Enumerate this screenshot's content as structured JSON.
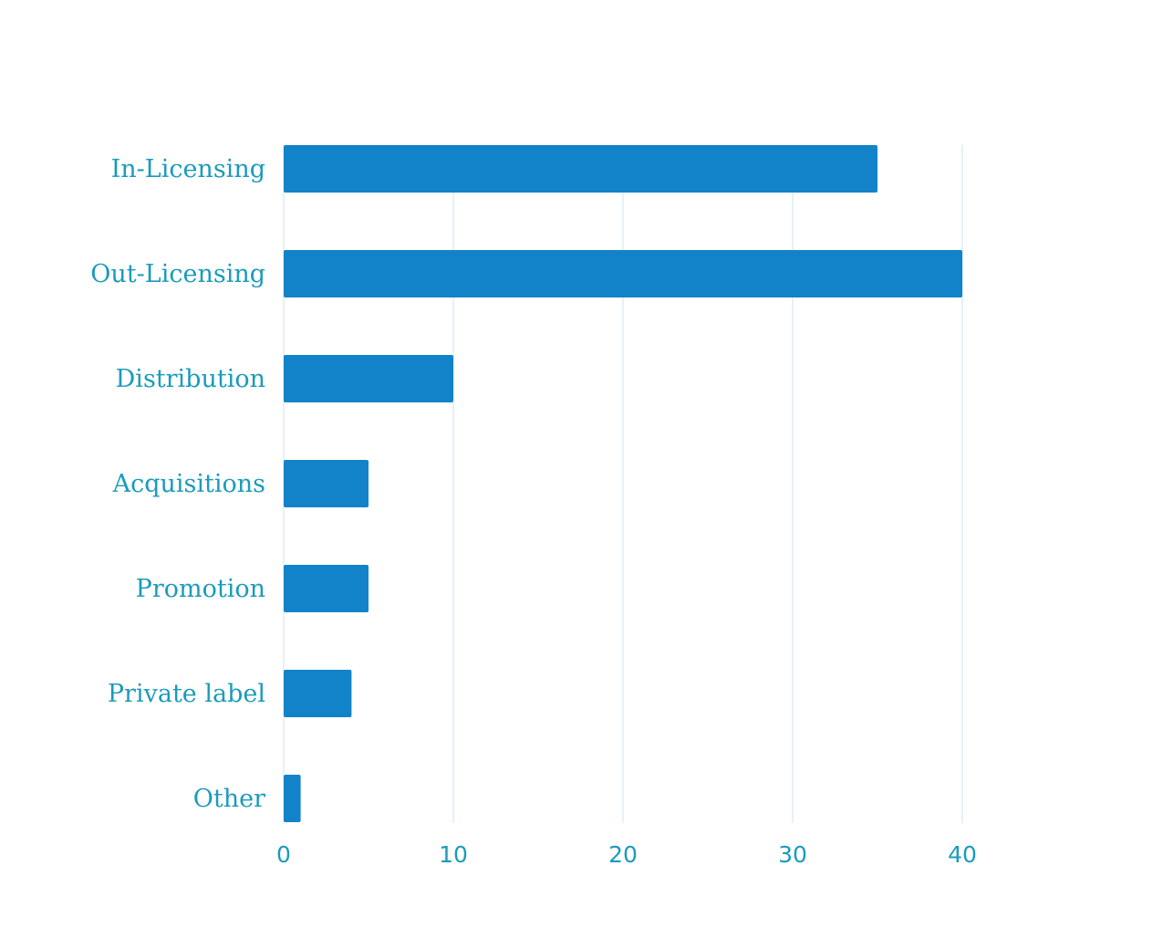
{
  "chart_data": {
    "type": "bar",
    "orientation": "horizontal",
    "categories": [
      "In-Licensing",
      "Out-Licensing",
      "Distribution",
      "Acquisitions",
      "Promotion",
      "Private label",
      "Other"
    ],
    "values": [
      35,
      40,
      10,
      5,
      5,
      4,
      1
    ],
    "title": "",
    "xlabel": "",
    "ylabel": "",
    "xlim": [
      0,
      40
    ],
    "xticks": [
      "0",
      "10",
      "20",
      "30",
      "40"
    ],
    "grid": true,
    "legend": "none",
    "colors": {
      "bar": "#1283c8",
      "label": "#1a9bbb",
      "grid": "#d6ebf5"
    }
  }
}
